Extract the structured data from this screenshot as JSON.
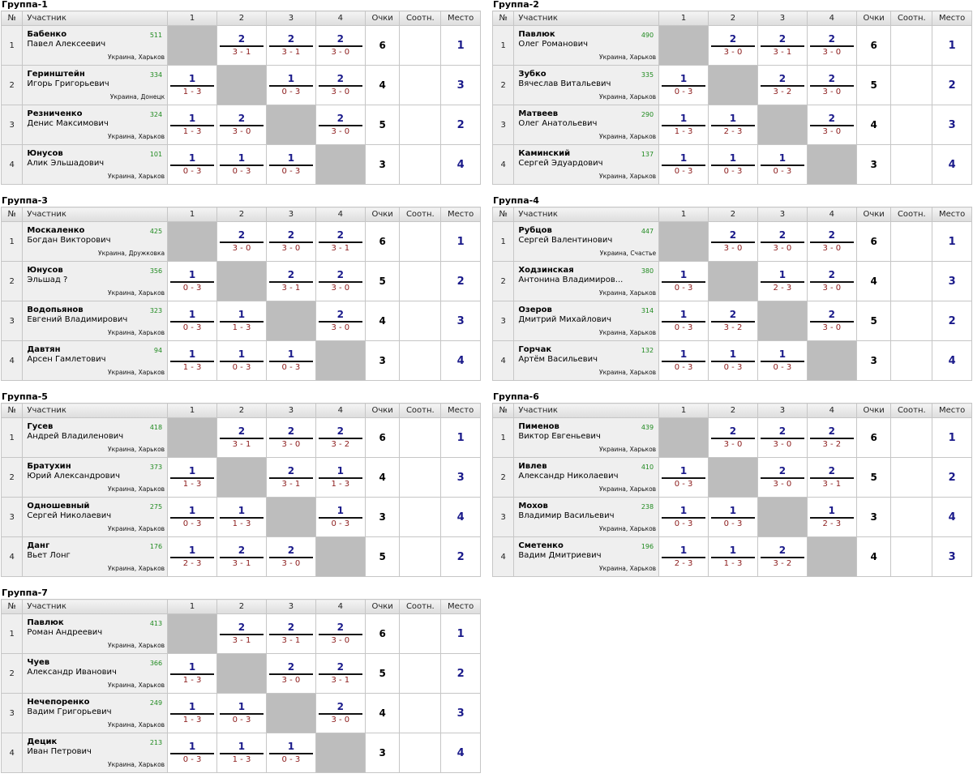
{
  "columns": {
    "num": "№",
    "participant": "Участник",
    "opp": [
      "1",
      "2",
      "3",
      "4"
    ],
    "points": "Очки",
    "ratio": "Соотн.",
    "place": "Место"
  },
  "groups": [
    {
      "title": "Группа-1",
      "players": [
        {
          "num": "1",
          "last": "Бабенко",
          "first": "Павел Алексеевич",
          "rating": "511",
          "city": "Украина, Харьков",
          "results": [
            null,
            {
              "p": "2",
              "s": "3 - 1"
            },
            {
              "p": "2",
              "s": "3 - 1"
            },
            {
              "p": "2",
              "s": "3 - 0"
            }
          ],
          "points": "6",
          "place": "1"
        },
        {
          "num": "2",
          "last": "Геринштейн",
          "first": "Игорь Григорьевич",
          "rating": "334",
          "city": "Украина, Донецк",
          "results": [
            {
              "p": "1",
              "s": "1 - 3"
            },
            null,
            {
              "p": "1",
              "s": "0 - 3"
            },
            {
              "p": "2",
              "s": "3 - 0"
            }
          ],
          "points": "4",
          "place": "3"
        },
        {
          "num": "3",
          "last": "Резниченко",
          "first": "Денис Максимович",
          "rating": "324",
          "city": "Украина, Харьков",
          "results": [
            {
              "p": "1",
              "s": "1 - 3"
            },
            {
              "p": "2",
              "s": "3 - 0"
            },
            null,
            {
              "p": "2",
              "s": "3 - 0"
            }
          ],
          "points": "5",
          "place": "2"
        },
        {
          "num": "4",
          "last": "Юнусов",
          "first": "Алик Эльшадович",
          "rating": "101",
          "city": "Украина, Харьков",
          "results": [
            {
              "p": "1",
              "s": "0 - 3"
            },
            {
              "p": "1",
              "s": "0 - 3"
            },
            {
              "p": "1",
              "s": "0 - 3"
            },
            null
          ],
          "points": "3",
          "place": "4"
        }
      ]
    },
    {
      "title": "Группа-2",
      "players": [
        {
          "num": "1",
          "last": "Павлюк",
          "first": "Олег Романович",
          "rating": "490",
          "city": "Украина, Харьков",
          "results": [
            null,
            {
              "p": "2",
              "s": "3 - 0"
            },
            {
              "p": "2",
              "s": "3 - 1"
            },
            {
              "p": "2",
              "s": "3 - 0"
            }
          ],
          "points": "6",
          "place": "1"
        },
        {
          "num": "2",
          "last": "Зубко",
          "first": "Вячеслав Витальевич",
          "rating": "335",
          "city": "Украина, Харьков",
          "results": [
            {
              "p": "1",
              "s": "0 - 3"
            },
            null,
            {
              "p": "2",
              "s": "3 - 2"
            },
            {
              "p": "2",
              "s": "3 - 0"
            }
          ],
          "points": "5",
          "place": "2"
        },
        {
          "num": "3",
          "last": "Матвеев",
          "first": "Олег Анатольевич",
          "rating": "290",
          "city": "Украина, Харьков",
          "results": [
            {
              "p": "1",
              "s": "1 - 3"
            },
            {
              "p": "1",
              "s": "2 - 3"
            },
            null,
            {
              "p": "2",
              "s": "3 - 0"
            }
          ],
          "points": "4",
          "place": "3"
        },
        {
          "num": "4",
          "last": "Каминский",
          "first": "Сергей Эдуардович",
          "rating": "137",
          "city": "Украина, Харьков",
          "results": [
            {
              "p": "1",
              "s": "0 - 3"
            },
            {
              "p": "1",
              "s": "0 - 3"
            },
            {
              "p": "1",
              "s": "0 - 3"
            },
            null
          ],
          "points": "3",
          "place": "4"
        }
      ]
    },
    {
      "title": "Группа-3",
      "players": [
        {
          "num": "1",
          "last": "Москаленко",
          "first": "Богдан Викторович",
          "rating": "425",
          "city": "Украина, Дружковка",
          "results": [
            null,
            {
              "p": "2",
              "s": "3 - 0"
            },
            {
              "p": "2",
              "s": "3 - 0"
            },
            {
              "p": "2",
              "s": "3 - 1"
            }
          ],
          "points": "6",
          "place": "1"
        },
        {
          "num": "2",
          "last": "Юнусов",
          "first": "Эльшад ?",
          "rating": "356",
          "city": "Украина, Харьков",
          "results": [
            {
              "p": "1",
              "s": "0 - 3"
            },
            null,
            {
              "p": "2",
              "s": "3 - 1"
            },
            {
              "p": "2",
              "s": "3 - 0"
            }
          ],
          "points": "5",
          "place": "2"
        },
        {
          "num": "3",
          "last": "Водопьянов",
          "first": "Евгений Владимирович",
          "rating": "323",
          "city": "Украина, Харьков",
          "results": [
            {
              "p": "1",
              "s": "0 - 3"
            },
            {
              "p": "1",
              "s": "1 - 3"
            },
            null,
            {
              "p": "2",
              "s": "3 - 0"
            }
          ],
          "points": "4",
          "place": "3"
        },
        {
          "num": "4",
          "last": "Давтян",
          "first": "Арсен Гамлетович",
          "rating": "94",
          "city": "Украина, Харьков",
          "results": [
            {
              "p": "1",
              "s": "1 - 3"
            },
            {
              "p": "1",
              "s": "0 - 3"
            },
            {
              "p": "1",
              "s": "0 - 3"
            },
            null
          ],
          "points": "3",
          "place": "4"
        }
      ]
    },
    {
      "title": "Группа-4",
      "players": [
        {
          "num": "1",
          "last": "Рубцов",
          "first": "Сергей Валентинович",
          "rating": "447",
          "city": "Украина, Счастье",
          "results": [
            null,
            {
              "p": "2",
              "s": "3 - 0"
            },
            {
              "p": "2",
              "s": "3 - 0"
            },
            {
              "p": "2",
              "s": "3 - 0"
            }
          ],
          "points": "6",
          "place": "1"
        },
        {
          "num": "2",
          "last": "Ходзинская",
          "first": "Антонина Владимиров...",
          "rating": "380",
          "city": "Украина, Харьков",
          "results": [
            {
              "p": "1",
              "s": "0 - 3"
            },
            null,
            {
              "p": "1",
              "s": "2 - 3"
            },
            {
              "p": "2",
              "s": "3 - 0"
            }
          ],
          "points": "4",
          "place": "3"
        },
        {
          "num": "3",
          "last": "Озеров",
          "first": "Дмитрий Михайлович",
          "rating": "314",
          "city": "Украина, Харьков",
          "results": [
            {
              "p": "1",
              "s": "0 - 3"
            },
            {
              "p": "2",
              "s": "3 - 2"
            },
            null,
            {
              "p": "2",
              "s": "3 - 0"
            }
          ],
          "points": "5",
          "place": "2"
        },
        {
          "num": "4",
          "last": "Горчак",
          "first": "Артём Васильевич",
          "rating": "132",
          "city": "Украина, Харьков",
          "results": [
            {
              "p": "1",
              "s": "0 - 3"
            },
            {
              "p": "1",
              "s": "0 - 3"
            },
            {
              "p": "1",
              "s": "0 - 3"
            },
            null
          ],
          "points": "3",
          "place": "4"
        }
      ]
    },
    {
      "title": "Группа-5",
      "players": [
        {
          "num": "1",
          "last": "Гусев",
          "first": "Андрей Владиленович",
          "rating": "418",
          "city": "Украина, Харьков",
          "results": [
            null,
            {
              "p": "2",
              "s": "3 - 1"
            },
            {
              "p": "2",
              "s": "3 - 0"
            },
            {
              "p": "2",
              "s": "3 - 2"
            }
          ],
          "points": "6",
          "place": "1"
        },
        {
          "num": "2",
          "last": "Братухин",
          "first": "Юрий Александрович",
          "rating": "373",
          "city": "Украина, Харьков",
          "results": [
            {
              "p": "1",
              "s": "1 - 3"
            },
            null,
            {
              "p": "2",
              "s": "3 - 1"
            },
            {
              "p": "1",
              "s": "1 - 3"
            }
          ],
          "points": "4",
          "place": "3"
        },
        {
          "num": "3",
          "last": "Одношевный",
          "first": "Сергей Николаевич",
          "rating": "275",
          "city": "Украина, Харьков",
          "results": [
            {
              "p": "1",
              "s": "0 - 3"
            },
            {
              "p": "1",
              "s": "1 - 3"
            },
            null,
            {
              "p": "1",
              "s": "0 - 3"
            }
          ],
          "points": "3",
          "place": "4"
        },
        {
          "num": "4",
          "last": "Данг",
          "first": "Вьет Лонг",
          "rating": "176",
          "city": "Украина, Харьков",
          "results": [
            {
              "p": "1",
              "s": "2 - 3"
            },
            {
              "p": "2",
              "s": "3 - 1"
            },
            {
              "p": "2",
              "s": "3 - 0"
            },
            null
          ],
          "points": "5",
          "place": "2"
        }
      ]
    },
    {
      "title": "Группа-6",
      "players": [
        {
          "num": "1",
          "last": "Пименов",
          "first": "Виктор Евгеньевич",
          "rating": "439",
          "city": "Украина, Харьков",
          "results": [
            null,
            {
              "p": "2",
              "s": "3 - 0"
            },
            {
              "p": "2",
              "s": "3 - 0"
            },
            {
              "p": "2",
              "s": "3 - 2"
            }
          ],
          "points": "6",
          "place": "1"
        },
        {
          "num": "2",
          "last": "Ивлев",
          "first": "Александр Николаевич",
          "rating": "410",
          "city": "Украина, Харьков",
          "results": [
            {
              "p": "1",
              "s": "0 - 3"
            },
            null,
            {
              "p": "2",
              "s": "3 - 0"
            },
            {
              "p": "2",
              "s": "3 - 1"
            }
          ],
          "points": "5",
          "place": "2"
        },
        {
          "num": "3",
          "last": "Мохов",
          "first": "Владимир Васильевич",
          "rating": "238",
          "city": "Украина, Харьков",
          "results": [
            {
              "p": "1",
              "s": "0 - 3"
            },
            {
              "p": "1",
              "s": "0 - 3"
            },
            null,
            {
              "p": "1",
              "s": "2 - 3"
            }
          ],
          "points": "3",
          "place": "4"
        },
        {
          "num": "4",
          "last": "Сметенко",
          "first": "Вадим Дмитриевич",
          "rating": "196",
          "city": "Украина, Харьков",
          "results": [
            {
              "p": "1",
              "s": "2 - 3"
            },
            {
              "p": "1",
              "s": "1 - 3"
            },
            {
              "p": "2",
              "s": "3 - 2"
            },
            null
          ],
          "points": "4",
          "place": "3"
        }
      ]
    },
    {
      "title": "Группа-7",
      "players": [
        {
          "num": "1",
          "last": "Павлюк",
          "first": "Роман Андреевич",
          "rating": "413",
          "city": "Украина, Харьков",
          "results": [
            null,
            {
              "p": "2",
              "s": "3 - 1"
            },
            {
              "p": "2",
              "s": "3 - 1"
            },
            {
              "p": "2",
              "s": "3 - 0"
            }
          ],
          "points": "6",
          "place": "1"
        },
        {
          "num": "2",
          "last": "Чуев",
          "first": "Александр Иванович",
          "rating": "366",
          "city": "Украина, Харьков",
          "results": [
            {
              "p": "1",
              "s": "1 - 3"
            },
            null,
            {
              "p": "2",
              "s": "3 - 0"
            },
            {
              "p": "2",
              "s": "3 - 1"
            }
          ],
          "points": "5",
          "place": "2"
        },
        {
          "num": "3",
          "last": "Нечепоренко",
          "first": "Вадим Григорьевич",
          "rating": "249",
          "city": "Украина, Харьков",
          "results": [
            {
              "p": "1",
              "s": "1 - 3"
            },
            {
              "p": "1",
              "s": "0 - 3"
            },
            null,
            {
              "p": "2",
              "s": "3 - 0"
            }
          ],
          "points": "4",
          "place": "3"
        },
        {
          "num": "4",
          "last": "Децик",
          "first": "Иван Петрович",
          "rating": "213",
          "city": "Украина, Харьков",
          "results": [
            {
              "p": "1",
              "s": "0 - 3"
            },
            {
              "p": "1",
              "s": "1 - 3"
            },
            {
              "p": "1",
              "s": "0 - 3"
            },
            null
          ],
          "points": "3",
          "place": "4"
        }
      ]
    }
  ]
}
